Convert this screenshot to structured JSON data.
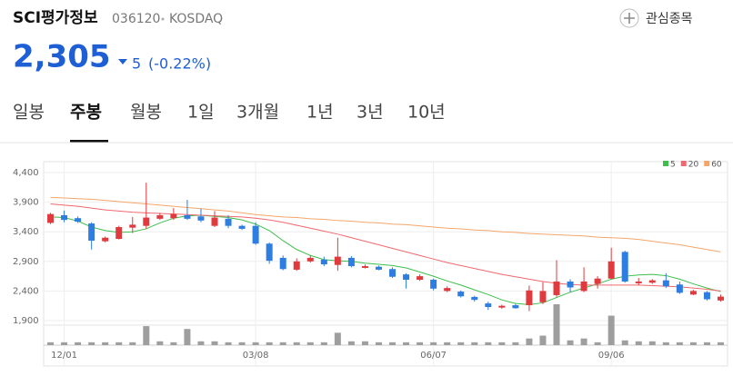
{
  "header": {
    "name": "SCI평가정보",
    "code": "036120",
    "market": "KOSDAQ",
    "price": "2,305",
    "change": "5",
    "change_pct": "(-0.22%)",
    "watch": "관심종목"
  },
  "tabs": [
    "일봉",
    "주봉",
    "월봉",
    "1일",
    "3개월",
    "1년",
    "3년",
    "10년"
  ],
  "active_tab": 1,
  "chart_data": {
    "type": "candlestick",
    "categories": [
      null,
      "12/01",
      null,
      null,
      null,
      null,
      null,
      null,
      null,
      null,
      null,
      null,
      null,
      null,
      null,
      "03/08",
      null,
      null,
      null,
      null,
      null,
      null,
      null,
      null,
      null,
      null,
      null,
      null,
      "06/07",
      null,
      null,
      null,
      null,
      null,
      null,
      null,
      null,
      null,
      null,
      null,
      null,
      "09/06",
      null,
      null,
      null,
      null,
      null,
      null,
      null,
      null
    ],
    "open": [
      3550,
      3680,
      3630,
      3540,
      3240,
      3280,
      3470,
      3500,
      3620,
      3630,
      3680,
      3660,
      3500,
      3620,
      3500,
      3500,
      3200,
      2960,
      2760,
      2900,
      2930,
      2840,
      2960,
      2790,
      2810,
      2770,
      2680,
      2590,
      2590,
      2400,
      2390,
      2300,
      2190,
      2120,
      2160,
      2160,
      2210,
      2330,
      2560,
      2400,
      2520,
      2610,
      3060,
      2530,
      2540,
      2580,
      2510,
      2340,
      2380,
      2240
    ],
    "high": [
      3720,
      3760,
      3660,
      3560,
      3320,
      3500,
      3650,
      4230,
      3720,
      3800,
      3940,
      3790,
      3750,
      3680,
      3520,
      3560,
      3220,
      3000,
      2950,
      3000,
      2980,
      3300,
      2990,
      2850,
      2830,
      2800,
      2700,
      2680,
      2610,
      2480,
      2410,
      2320,
      2220,
      2170,
      2180,
      2490,
      2550,
      2920,
      2600,
      2800,
      2650,
      3130,
      3080,
      2620,
      2600,
      2700,
      2560,
      2420,
      2400,
      2340
    ],
    "low": [
      3530,
      3560,
      3550,
      3100,
      3220,
      3270,
      3380,
      3450,
      3600,
      3600,
      3600,
      3560,
      3480,
      3460,
      3430,
      3180,
      2860,
      2750,
      2740,
      2880,
      2820,
      2740,
      2800,
      2780,
      2750,
      2620,
      2440,
      2570,
      2410,
      2380,
      2290,
      2220,
      2080,
      2100,
      2100,
      2060,
      2180,
      2300,
      2380,
      2380,
      2440,
      2600,
      2540,
      2500,
      2520,
      2450,
      2350,
      2330,
      2240,
      2220
    ],
    "close": [
      3700,
      3600,
      3570,
      3250,
      3300,
      3480,
      3520,
      3640,
      3680,
      3700,
      3620,
      3590,
      3640,
      3500,
      3450,
      3200,
      2910,
      2770,
      2900,
      2960,
      2850,
      2980,
      2820,
      2820,
      2760,
      2640,
      2590,
      2650,
      2440,
      2450,
      2310,
      2250,
      2130,
      2150,
      2110,
      2410,
      2400,
      2560,
      2460,
      2560,
      2610,
      2900,
      2560,
      2560,
      2580,
      2480,
      2370,
      2400,
      2260,
      2305
    ],
    "volume": [
      3,
      3,
      3,
      3,
      3,
      3,
      3,
      20,
      4,
      3,
      17,
      4,
      4,
      3,
      3,
      3,
      3,
      3,
      3,
      3,
      3,
      13,
      4,
      4,
      3,
      3,
      3,
      3,
      3,
      3,
      3,
      3,
      3,
      3,
      3,
      7,
      10,
      43,
      5,
      7,
      3,
      31,
      5,
      4,
      4,
      3,
      3,
      3,
      3,
      3
    ],
    "up_color": "#e0393e",
    "down_color": "#2e7de1",
    "series": [
      {
        "name": "5",
        "color": "#3cbf4b",
        "values": [
          3650,
          3640,
          3580,
          3480,
          3420,
          3390,
          3400,
          3450,
          3550,
          3630,
          3670,
          3680,
          3660,
          3640,
          3600,
          3530,
          3420,
          3250,
          3100,
          3000,
          2930,
          2910,
          2900,
          2870,
          2850,
          2830,
          2790,
          2720,
          2650,
          2570,
          2500,
          2420,
          2340,
          2250,
          2190,
          2170,
          2200,
          2290,
          2380,
          2450,
          2520,
          2600,
          2650,
          2670,
          2680,
          2660,
          2600,
          2520,
          2450,
          2390
        ]
      },
      {
        "name": "20",
        "color": "#f0696e",
        "values": [
          3870,
          3850,
          3830,
          3800,
          3770,
          3750,
          3730,
          3720,
          3710,
          3700,
          3690,
          3680,
          3670,
          3660,
          3650,
          3630,
          3600,
          3560,
          3510,
          3460,
          3410,
          3360,
          3300,
          3240,
          3180,
          3120,
          3060,
          3000,
          2940,
          2880,
          2830,
          2780,
          2730,
          2680,
          2640,
          2600,
          2560,
          2530,
          2510,
          2500,
          2500,
          2500,
          2500,
          2500,
          2490,
          2480,
          2470,
          2450,
          2430,
          2400
        ]
      },
      {
        "name": "60",
        "color": "#f4a66a",
        "values": [
          3980,
          3970,
          3960,
          3950,
          3930,
          3910,
          3890,
          3870,
          3850,
          3830,
          3810,
          3790,
          3770,
          3750,
          3720,
          3690,
          3670,
          3650,
          3640,
          3620,
          3610,
          3590,
          3580,
          3560,
          3550,
          3530,
          3520,
          3500,
          3480,
          3460,
          3450,
          3430,
          3420,
          3400,
          3390,
          3370,
          3360,
          3350,
          3340,
          3330,
          3310,
          3300,
          3290,
          3270,
          3240,
          3210,
          3180,
          3140,
          3100,
          3060
        ]
      }
    ],
    "ylim": [
      1900,
      4400
    ],
    "yticks": [
      {
        "value": 4400,
        "label": "4,400"
      },
      {
        "value": 3900,
        "label": "3,900"
      },
      {
        "value": 3400,
        "label": "3,400"
      },
      {
        "value": 2900,
        "label": "2,900"
      },
      {
        "value": 2400,
        "label": "2,400"
      },
      {
        "value": 1900,
        "label": "1,900"
      }
    ],
    "grid": true,
    "legend": "top-right"
  }
}
